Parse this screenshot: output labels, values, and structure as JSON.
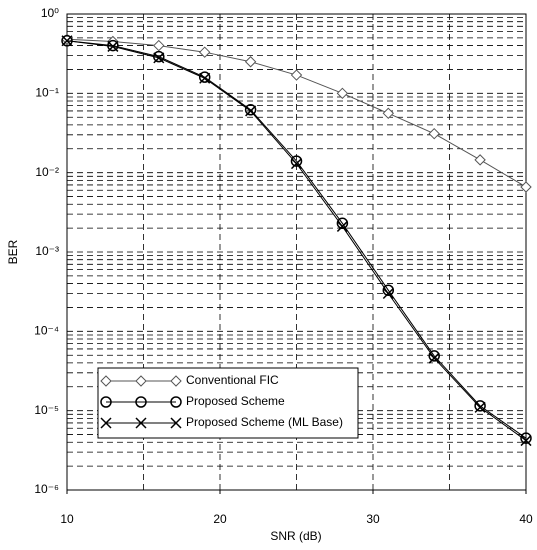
{
  "chart_data": {
    "type": "line",
    "x_label": "SNR (dB)",
    "y_label": "BER",
    "log_y": true,
    "grid": true,
    "minor_grid": true,
    "xlim": [
      10,
      40
    ],
    "xticks": [
      10,
      20,
      30,
      40
    ],
    "xgrid": [
      15,
      20,
      25,
      30,
      35
    ],
    "ylim": [
      1e-06,
      1
    ],
    "yticks": [
      {
        "value": 1,
        "label": "10⁰"
      },
      {
        "value": 0.1,
        "label": "10⁻¹"
      },
      {
        "value": 0.01,
        "label": "10⁻²"
      },
      {
        "value": 0.001,
        "label": "10⁻³"
      },
      {
        "value": 0.0001,
        "label": "10⁻⁴"
      },
      {
        "value": 1e-05,
        "label": "10⁻⁵"
      },
      {
        "value": 1e-06,
        "label": "10⁻⁶"
      }
    ],
    "x": [
      10,
      13,
      16,
      19,
      22,
      25,
      28,
      31,
      34,
      37,
      40
    ],
    "legend": "lower-left",
    "series": [
      {
        "name": "Conventional FIC",
        "color": "#555555",
        "marker": "diamond",
        "values": [
          0.48,
          0.45,
          0.4,
          0.33,
          0.25,
          0.17,
          0.1,
          0.056,
          0.031,
          0.0145,
          0.0066
        ]
      },
      {
        "name": "Proposed Scheme",
        "color": "#000000",
        "marker": "circle",
        "values": [
          0.46,
          0.4,
          0.29,
          0.16,
          0.062,
          0.014,
          0.0023,
          0.00033,
          4.9e-05,
          1.15e-05,
          4.5e-06
        ]
      },
      {
        "name": "Proposed Scheme (ML Base)",
        "color": "#000000",
        "marker": "x",
        "values": [
          0.46,
          0.39,
          0.28,
          0.155,
          0.06,
          0.013,
          0.0021,
          0.0003,
          4.6e-05,
          1.1e-05,
          4.2e-06
        ]
      }
    ]
  }
}
